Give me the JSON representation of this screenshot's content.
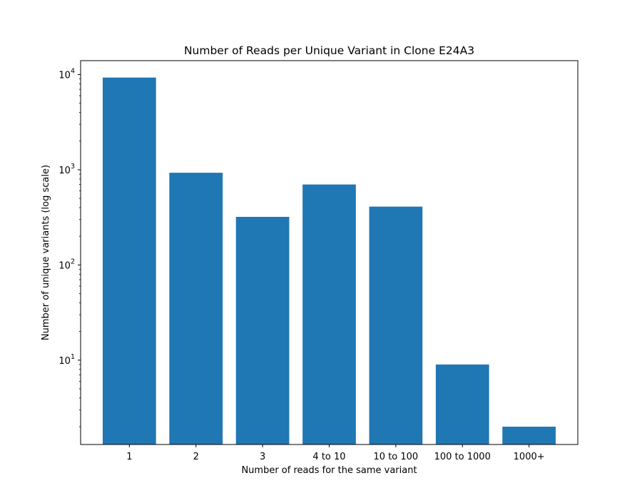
{
  "chart_data": {
    "type": "bar",
    "title": "Number of Reads per Unique Variant in Clone E24A3",
    "xlabel": "Number of reads for the same variant",
    "ylabel": "Number of unique variants (log scale)",
    "categories": [
      "1",
      "2",
      "3",
      "4 to 10",
      "10 to 100",
      "100 to 1000",
      "1000+"
    ],
    "values": [
      9300,
      930,
      320,
      700,
      410,
      9,
      2
    ],
    "yscale": "log",
    "ylim": [
      1.3,
      14000
    ],
    "yticks": [
      {
        "base": "10",
        "exp": "1",
        "value": 10
      },
      {
        "base": "10",
        "exp": "2",
        "value": 100
      },
      {
        "base": "10",
        "exp": "3",
        "value": 1000
      },
      {
        "base": "10",
        "exp": "4",
        "value": 10000
      }
    ],
    "grid": false,
    "bar_color": "#1f77b4"
  }
}
